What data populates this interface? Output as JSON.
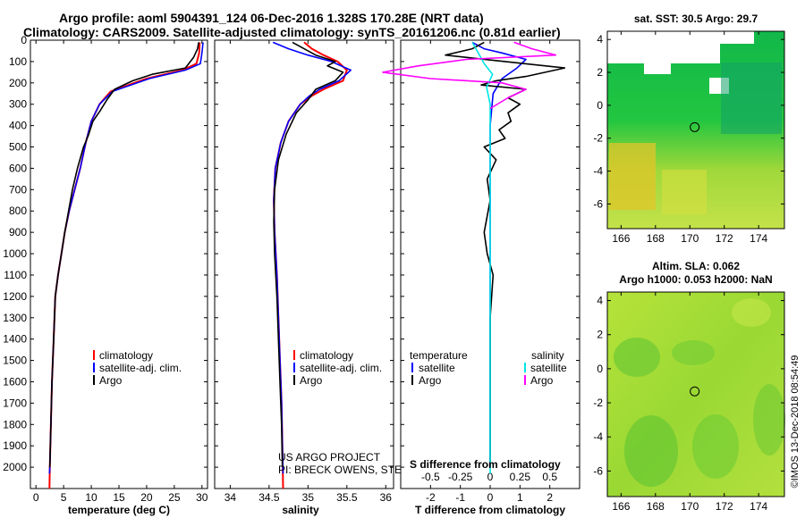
{
  "header": {
    "line1": "Argo profile: aoml 5904391_124 06-Dec-2016 1.328S 170.28E (NRT data)",
    "line2": "Climatology: CARS2009. Satellite-adjusted climatology: synTS_20161206.nc (0.81d earlier)"
  },
  "colors": {
    "climatology": "#ff0000",
    "satellite": "#0000ff",
    "argo": "#000000",
    "sal_satellite": "#00e5e5",
    "sal_argo": "#ff00ff"
  },
  "legend": {
    "climatology": "climatology",
    "satellite": "satellite-adj. clim.",
    "argo": "Argo",
    "diff_temperature": "temperature",
    "diff_salinity": "salinity",
    "diff_satellite": "satellite",
    "diff_argo": "Argo"
  },
  "credits": {
    "project": "US ARGO PROJECT",
    "pis": "PI: BRECK OWENS, STEVE JAYNE, P.E. ROBBINS"
  },
  "stamp": "©IMOS 13-Dec-2018 08:54:49",
  "chart_data": [
    {
      "type": "line",
      "id": "temperature",
      "xlabel": "temperature (deg C)",
      "ylabel": "",
      "xlim": [
        -1,
        31
      ],
      "ylim": [
        2100,
        0
      ],
      "xticks": [
        "0",
        "5",
        "10",
        "15",
        "20",
        "25",
        "30"
      ],
      "xtick_values": [
        0,
        5,
        10,
        15,
        20,
        25,
        30
      ],
      "yticks": [
        "0",
        "100",
        "200",
        "300",
        "400",
        "500",
        "600",
        "700",
        "800",
        "900",
        "1000",
        "1100",
        "1200",
        "1300",
        "1400",
        "1500",
        "1600",
        "1700",
        "1800",
        "1900",
        "2000"
      ],
      "ytick_values": [
        0,
        100,
        200,
        300,
        400,
        500,
        600,
        700,
        800,
        900,
        1000,
        1100,
        1200,
        1300,
        1400,
        1500,
        1600,
        1700,
        1800,
        1900,
        2000
      ],
      "series": [
        {
          "name": "climatology",
          "color": "#ff0000",
          "x": [
            29.6,
            29.5,
            29.0,
            26.5,
            20.0,
            13.5,
            11.5,
            10.0,
            9.0,
            8.0,
            7.0,
            6.0,
            5.2,
            4.6,
            4.0,
            3.5,
            3.2,
            2.9,
            2.7,
            2.5,
            2.45
          ],
          "y": [
            10,
            60,
            110,
            140,
            180,
            240,
            300,
            380,
            480,
            600,
            700,
            800,
            900,
            1000,
            1100,
            1200,
            1400,
            1600,
            1800,
            2000,
            2100
          ]
        },
        {
          "name": "satellite-adj. clim.",
          "color": "#0000ff",
          "x": [
            30.2,
            30.0,
            29.7,
            27.0,
            20.5,
            13.8,
            11.5,
            10.0,
            9.0,
            8.0,
            7.0,
            6.0,
            5.2,
            4.6,
            4.0,
            3.5,
            3.2,
            2.9,
            2.7,
            2.5,
            2.45
          ],
          "y": [
            10,
            60,
            110,
            140,
            180,
            240,
            300,
            380,
            480,
            600,
            700,
            800,
            900,
            1000,
            1100,
            1200,
            1400,
            1600,
            1800,
            2000,
            2030
          ]
        },
        {
          "name": "Argo",
          "color": "#000000",
          "x": [
            29.4,
            29.2,
            28.5,
            27.0,
            21.0,
            17.5,
            14.2,
            12.8,
            11.6,
            10.3,
            9.4,
            8.6,
            7.5,
            6.6,
            5.9,
            5.2,
            4.6,
            4.0,
            3.5,
            3.2,
            2.9,
            2.7,
            2.5
          ],
          "y": [
            10,
            40,
            80,
            130,
            160,
            190,
            230,
            280,
            330,
            380,
            450,
            500,
            600,
            700,
            800,
            900,
            1000,
            1100,
            1200,
            1400,
            1600,
            1800,
            2000
          ]
        }
      ],
      "legend": {
        "entries": [
          "climatology",
          "satellite-adj. clim.",
          "Argo"
        ],
        "placement": "lower-right"
      }
    },
    {
      "type": "line",
      "id": "salinity",
      "xlabel": "salinity",
      "ylabel": "",
      "xlim": [
        33.8,
        36.1
      ],
      "ylim": [
        2100,
        0
      ],
      "xticks": [
        "34",
        "34.5",
        "35",
        "35.5",
        "36"
      ],
      "xtick_values": [
        34,
        34.5,
        35,
        35.5,
        36
      ],
      "series": [
        {
          "name": "climatology",
          "color": "#ff0000",
          "x": [
            34.95,
            35.05,
            35.2,
            35.38,
            35.5,
            35.45,
            35.2,
            35.05,
            34.9,
            34.75,
            34.65,
            34.58,
            34.56,
            34.57,
            34.6,
            34.62,
            34.64,
            34.66,
            34.67,
            34.68
          ],
          "y": [
            10,
            40,
            70,
            100,
            140,
            190,
            230,
            260,
            300,
            380,
            480,
            600,
            750,
            900,
            1100,
            1300,
            1500,
            1700,
            1900,
            2100
          ]
        },
        {
          "name": "satellite-adj. clim.",
          "color": "#0000ff",
          "x": [
            34.55,
            34.75,
            35.0,
            35.3,
            35.55,
            35.4,
            35.15,
            35.02,
            34.9,
            34.75,
            34.65,
            34.58,
            34.56,
            34.57,
            34.6,
            34.62,
            34.64,
            34.66,
            34.67,
            34.68
          ],
          "y": [
            10,
            40,
            70,
            100,
            140,
            190,
            230,
            260,
            300,
            380,
            480,
            600,
            750,
            900,
            1100,
            1300,
            1500,
            1700,
            1900,
            2030
          ]
        },
        {
          "name": "Argo",
          "color": "#000000",
          "x": [
            34.8,
            34.95,
            35.1,
            35.35,
            35.25,
            35.45,
            35.35,
            35.1,
            35.0,
            34.85,
            34.72,
            34.62,
            34.57,
            34.56,
            34.57,
            34.6,
            34.62,
            34.64,
            34.66,
            34.67
          ],
          "y": [
            10,
            40,
            70,
            100,
            120,
            150,
            190,
            230,
            280,
            340,
            440,
            560,
            700,
            850,
            1000,
            1200,
            1400,
            1600,
            1800,
            2000
          ]
        }
      ],
      "legend": {
        "entries": [
          "climatology",
          "satellite-adj. clim.",
          "Argo"
        ],
        "placement": "lower-right"
      }
    },
    {
      "type": "line",
      "id": "difference",
      "xlabel": "T difference from climatology",
      "x2label": "S difference from climatology",
      "xlim": [
        -3,
        3
      ],
      "ylim": [
        2100,
        0
      ],
      "xticks": [
        "-2",
        "-1",
        "0",
        "1",
        "2"
      ],
      "xtick_values": [
        -2,
        -1,
        0,
        1,
        2
      ],
      "x2ticks": [
        "-0.5",
        "-0.25",
        "0",
        "0.25",
        "0.5"
      ],
      "x2tick_values": [
        -0.5,
        -0.25,
        0,
        0.25,
        0.5
      ],
      "series": [
        {
          "name": "temperature satellite",
          "color": "#0000ff",
          "x": [
            -0.6,
            -0.2,
            0.4,
            1.2,
            0.9,
            0.4,
            0.1,
            0.0,
            0.0,
            0.0,
            0.0
          ],
          "y": [
            10,
            40,
            60,
            90,
            130,
            180,
            250,
            400,
            800,
            1500,
            2000
          ]
        },
        {
          "name": "temperature Argo",
          "color": "#000000",
          "x": [
            -0.2,
            -0.6,
            -1.5,
            0.5,
            2.5,
            1.2,
            0.2,
            -0.3,
            1.2,
            0.6,
            1.0,
            0.6,
            0.7,
            0.3,
            0.5,
            -0.2,
            0.2,
            -0.1,
            0.0,
            -0.2,
            -0.1,
            0.1,
            0.0,
            0.0
          ],
          "y": [
            10,
            40,
            70,
            100,
            130,
            170,
            190,
            210,
            230,
            270,
            300,
            340,
            380,
            420,
            460,
            500,
            560,
            650,
            750,
            900,
            1000,
            1100,
            1300,
            2000
          ]
        },
        {
          "name": "salinity satellite",
          "color": "#00e5e5",
          "x": [
            -0.15,
            -0.1,
            -0.05,
            0.02,
            -0.03,
            0.0,
            0.0,
            0.0,
            0.0
          ],
          "y": [
            10,
            60,
            110,
            160,
            220,
            300,
            700,
            1500,
            2030
          ]
        },
        {
          "name": "salinity Argo",
          "color": "#ff00ff",
          "x": [
            0.2,
            0.35,
            0.55,
            -0.2,
            -0.6,
            -0.9,
            -0.5,
            0.1,
            0.3,
            0.15,
            0.0
          ],
          "y": [
            10,
            40,
            70,
            90,
            120,
            150,
            180,
            200,
            230,
            270,
            320
          ]
        }
      ],
      "legend": {
        "left_title": "temperature",
        "right_title": "salinity",
        "entries": [
          "satellite",
          "Argo",
          "satellite",
          "Argo"
        ],
        "placement": "lower-center"
      }
    },
    {
      "type": "heatmap",
      "id": "sst-map",
      "title": "sat. SST: 30.5 Argo: 29.7",
      "xlim": [
        165.2,
        175.5
      ],
      "ylim": [
        -7.5,
        4.5
      ],
      "xticks": [
        "166",
        "168",
        "170",
        "172",
        "174"
      ],
      "xtick_values": [
        166,
        168,
        170,
        172,
        174
      ],
      "yticks": [
        "4",
        "2",
        "0",
        "-2",
        "-4",
        "-6"
      ],
      "ytick_values": [
        4,
        2,
        0,
        -2,
        -4,
        -6
      ],
      "marker": {
        "lon": 170.28,
        "lat": -1.328
      }
    },
    {
      "type": "heatmap",
      "id": "sla-map",
      "title": "Altim. SLA: 0.062",
      "subtitle": "Argo h1000: 0.053 h2000: NaN",
      "xlim": [
        165.2,
        175.5
      ],
      "ylim": [
        -7.5,
        4.5
      ],
      "xticks": [
        "166",
        "168",
        "170",
        "172",
        "174"
      ],
      "xtick_values": [
        166,
        168,
        170,
        172,
        174
      ],
      "yticks": [
        "4",
        "2",
        "0",
        "-2",
        "-4",
        "-6"
      ],
      "ytick_values": [
        4,
        2,
        0,
        -2,
        -4,
        -6
      ],
      "marker": {
        "lon": 170.28,
        "lat": -1.328
      }
    }
  ]
}
